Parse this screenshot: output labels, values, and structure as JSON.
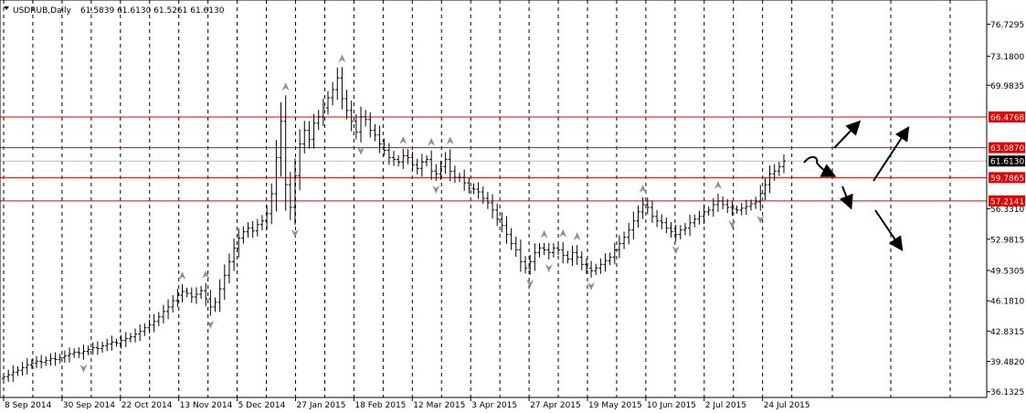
{
  "header": {
    "symbol_label": "USDRUB,Daily",
    "ohlc": "61.5839 61.6130 61.5261 61.6130"
  },
  "colors": {
    "level_line": "#e00000",
    "level_tag_bg": "#e00000",
    "price_tag_bg": "#000000",
    "bar": "#000000",
    "fractal": "#909090",
    "arrow": "#000000"
  },
  "chart_data": {
    "type": "ohlc",
    "title": "USDRUB,Daily",
    "ylim": [
      35.5,
      79.4
    ],
    "y_ticks": [
      "76.7295",
      "73.1800",
      "69.9835",
      "66.4768",
      "63.0870",
      "61.6130",
      "59.7865",
      "57.2141",
      "56.3310",
      "52.9815",
      "49.5305",
      "46.1810",
      "42.8315",
      "39.4820",
      "36.1325"
    ],
    "x_ticks": [
      "8 Sep 2014",
      "30 Sep 2014",
      "22 Oct 2014",
      "13 Nov 2014",
      "5 Dec 2014",
      "27 Jan 2015",
      "18 Feb 2015",
      "12 Mar 2015",
      "3 Apr 2015",
      "27 Apr 2015",
      "19 May 2015",
      "10 Jun 2015",
      "2 Jul 2015",
      "24 Jul 2015"
    ],
    "levels": [
      66.4768,
      63.087,
      59.7865,
      57.2141
    ],
    "current_price": 61.613,
    "close_series": [
      37.8,
      38.0,
      38.3,
      38.5,
      38.8,
      39.1,
      39.3,
      39.5,
      39.4,
      39.6,
      39.8,
      39.7,
      39.9,
      40.1,
      40.3,
      40.5,
      40.4,
      40.6,
      40.8,
      41.0,
      40.9,
      41.2,
      41.4,
      41.6,
      41.5,
      41.8,
      42.0,
      42.2,
      42.5,
      42.8,
      43.2,
      43.5,
      43.9,
      44.4,
      45.0,
      45.5,
      46.2,
      46.8,
      47.2,
      47.0,
      46.6,
      46.9,
      47.3,
      46.4,
      45.5,
      46.0,
      47.5,
      49.0,
      50.5,
      52.0,
      53.1,
      53.8,
      54.2,
      53.9,
      54.6,
      55.0,
      55.8,
      58.0,
      62.0,
      66.0,
      59.0,
      56.5,
      60.0,
      63.5,
      65.0,
      64.0,
      65.8,
      66.5,
      67.5,
      68.6,
      69.5,
      70.8,
      68.5,
      67.2,
      66.0,
      64.8,
      66.5,
      66.2,
      65.0,
      64.5,
      63.5,
      62.8,
      62.0,
      61.8,
      61.5,
      62.2,
      62.0,
      61.2,
      60.8,
      61.5,
      61.8,
      60.5,
      60.2,
      61.0,
      61.8,
      60.5,
      59.8,
      59.8,
      59.2,
      58.6,
      58.5,
      58.2,
      57.5,
      57.0,
      56.2,
      55.2,
      54.5,
      53.5,
      52.5,
      51.8,
      50.5,
      49.8,
      50.5,
      51.5,
      52.0,
      51.8,
      51.5,
      52.0,
      51.8,
      51.2,
      50.8,
      51.5,
      51.0,
      50.2,
      49.8,
      49.5,
      49.8,
      50.2,
      50.6,
      51.0,
      51.8,
      52.5,
      53.2,
      54.0,
      55.0,
      56.0,
      56.8,
      56.5,
      55.5,
      55.0,
      54.8,
      54.2,
      53.8,
      53.5,
      54.0,
      54.2,
      54.8,
      55.2,
      55.5,
      56.0,
      56.2,
      56.8,
      57.2,
      56.8,
      56.5,
      56.3,
      56.2,
      56.4,
      56.6,
      56.9,
      57.1,
      58.0,
      59.0,
      60.2,
      60.5,
      61.0,
      61.613
    ],
    "forecast_arrows": [
      "up",
      "up",
      "down",
      "down"
    ]
  }
}
